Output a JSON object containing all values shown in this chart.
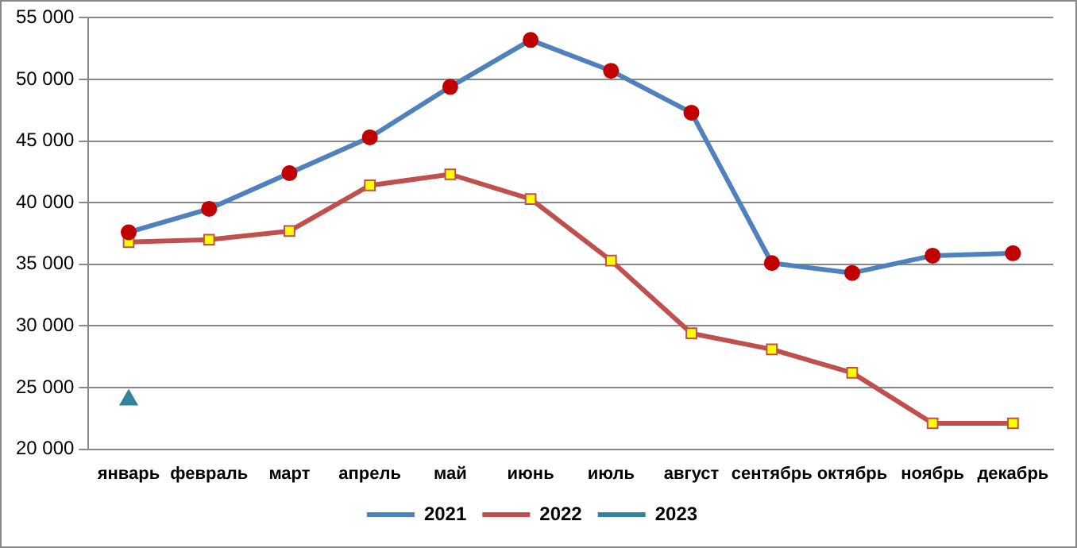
{
  "chart_data": {
    "type": "line",
    "categories": [
      "январь",
      "февраль",
      "март",
      "апрель",
      "май",
      "июнь",
      "июль",
      "август",
      "сентябрь",
      "октябрь",
      "ноябрь",
      "декабрь"
    ],
    "series": [
      {
        "name": "2021",
        "color": "#4f81bd",
        "marker": "circle",
        "values": [
          37600,
          39500,
          42400,
          45300,
          49400,
          53200,
          50700,
          47300,
          35100,
          34300,
          35700,
          35900
        ]
      },
      {
        "name": "2022",
        "color": "#c0504d",
        "marker": "square",
        "values": [
          36800,
          37000,
          37700,
          41400,
          42300,
          40300,
          35300,
          29400,
          28100,
          26200,
          22100,
          22100
        ]
      },
      {
        "name": "2023",
        "color": "#31859b",
        "marker": "triangle",
        "values": [
          24000,
          null,
          null,
          null,
          null,
          null,
          null,
          null,
          null,
          null,
          null,
          null
        ]
      }
    ],
    "ylim": [
      20000,
      55000
    ],
    "yticks": [
      {
        "value": 20000,
        "label": "20 000"
      },
      {
        "value": 25000,
        "label": "25 000"
      },
      {
        "value": 30000,
        "label": "30 000"
      },
      {
        "value": 35000,
        "label": "35 000"
      },
      {
        "value": 40000,
        "label": "40 000"
      },
      {
        "value": 45000,
        "label": "45 000"
      },
      {
        "value": 50000,
        "label": "50 000"
      },
      {
        "value": 55000,
        "label": "55 000"
      }
    ],
    "grid": "y",
    "legend": "bottom"
  }
}
